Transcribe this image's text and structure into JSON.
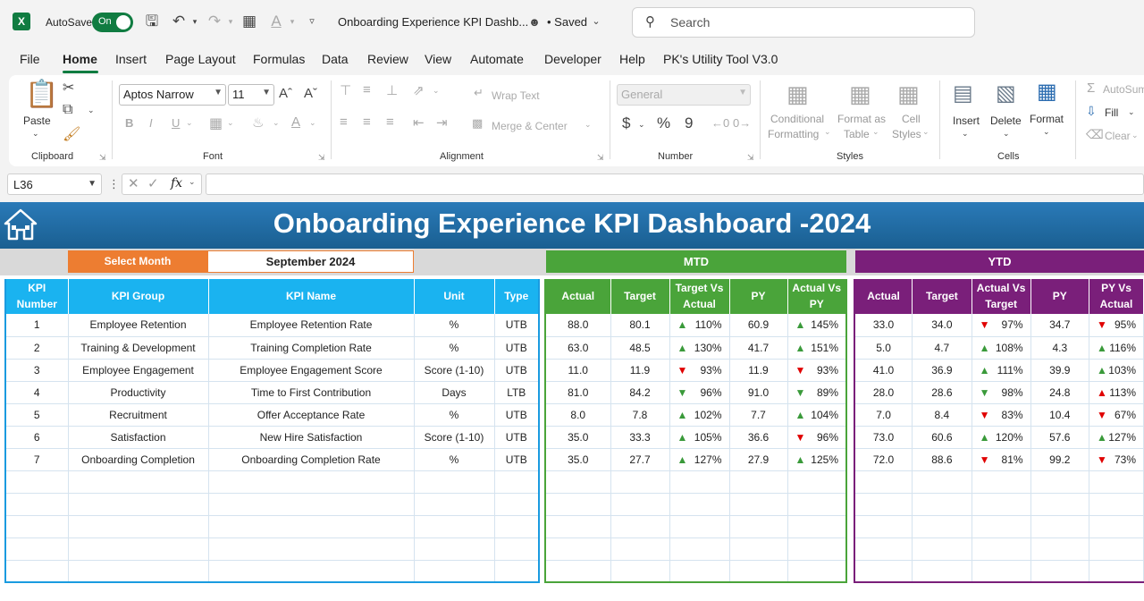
{
  "titlebar": {
    "logo": "X",
    "autosave_label": "AutoSave",
    "autosave_state": "On",
    "doc_title": "Onboarding Experience KPI Dashb...",
    "saved": "• Saved",
    "search_placeholder": "Search"
  },
  "menu": [
    "File",
    "Home",
    "Insert",
    "Page Layout",
    "Formulas",
    "Data",
    "Review",
    "View",
    "Automate",
    "Developer",
    "Help",
    "PK's Utility Tool V3.0"
  ],
  "ribbon": {
    "clipboard": {
      "paste": "Paste",
      "label": "Clipboard"
    },
    "font": {
      "family": "Aptos Narrow",
      "size": "11",
      "label": "Font",
      "bold": "B",
      "italic": "I",
      "underline": "U"
    },
    "alignment": {
      "wrap": "Wrap Text",
      "merge": "Merge & Center",
      "label": "Alignment"
    },
    "number": {
      "format": "General",
      "currency": "$",
      "percent": "%",
      "comma": "9",
      "label": "Number"
    },
    "styles": {
      "conditional": "Conditional",
      "conditional2": "Formatting",
      "format_as": "Format as",
      "format_as2": "Table",
      "cell": "Cell",
      "cell2": "Styles",
      "label": "Styles"
    },
    "cells": {
      "insert": "Insert",
      "delete": "Delete",
      "format": "Format",
      "label": "Cells"
    },
    "editing": {
      "autosum": "AutoSum",
      "fill": "Fill",
      "clear": "Clear"
    }
  },
  "formula_bar": {
    "name_box": "L36",
    "fx": "fx",
    "value": ""
  },
  "dashboard": {
    "title": "Onboarding Experience KPI Dashboard -2024",
    "select_month_label": "Select Month",
    "select_month_value": "September 2024",
    "mtd_label": "MTD",
    "ytd_label": "YTD",
    "colors": {
      "banner": "#1f6fa8",
      "select": "#ed7d31",
      "left_header": "#1ab3f0",
      "mtd": "#4aa43a",
      "ytd": "#7a1f7a",
      "up": "#3a9a3a",
      "down": "#e00000"
    },
    "left_headers": [
      "KPI Number",
      "KPI Group",
      "KPI Name",
      "Unit",
      "Type"
    ],
    "mtd_headers": [
      "Actual",
      "Target",
      "Target Vs Actual",
      "PY",
      "Actual Vs PY"
    ],
    "ytd_headers": [
      "Actual",
      "Target",
      "Actual Vs Target",
      "PY",
      "PY Vs Actual"
    ],
    "rows": [
      {
        "num": "1",
        "group": "Employee Retention",
        "name": "Employee Retention Rate",
        "unit": "%",
        "type": "UTB",
        "mtd": {
          "actual": "88.0",
          "target": "80.1",
          "tva": "110%",
          "tva_dir": "up",
          "py": "60.9",
          "avp": "145%",
          "avp_dir": "up"
        },
        "ytd": {
          "actual": "33.0",
          "target": "34.0",
          "avt": "97%",
          "avt_dir": "down",
          "py": "34.7",
          "pva": "95%",
          "pva_dir": "down"
        }
      },
      {
        "num": "2",
        "group": "Training & Development",
        "name": "Training Completion Rate",
        "unit": "%",
        "type": "UTB",
        "mtd": {
          "actual": "63.0",
          "target": "48.5",
          "tva": "130%",
          "tva_dir": "up",
          "py": "41.7",
          "avp": "151%",
          "avp_dir": "up"
        },
        "ytd": {
          "actual": "5.0",
          "target": "4.7",
          "avt": "108%",
          "avt_dir": "up",
          "py": "4.3",
          "pva": "116%",
          "pva_dir": "up"
        }
      },
      {
        "num": "3",
        "group": "Employee Engagement",
        "name": "Employee Engagement Score",
        "unit": "Score (1-10)",
        "type": "UTB",
        "mtd": {
          "actual": "11.0",
          "target": "11.9",
          "tva": "93%",
          "tva_dir": "down",
          "py": "11.9",
          "avp": "93%",
          "avp_dir": "down"
        },
        "ytd": {
          "actual": "41.0",
          "target": "36.9",
          "avt": "111%",
          "avt_dir": "up",
          "py": "39.9",
          "pva": "103%",
          "pva_dir": "up"
        }
      },
      {
        "num": "4",
        "group": "Productivity",
        "name": "Time to First Contribution",
        "unit": "Days",
        "type": "LTB",
        "mtd": {
          "actual": "81.0",
          "target": "84.2",
          "tva": "96%",
          "tva_dir": "down-green",
          "py": "91.0",
          "avp": "89%",
          "avp_dir": "down-green"
        },
        "ytd": {
          "actual": "28.0",
          "target": "28.6",
          "avt": "98%",
          "avt_dir": "down-green",
          "py": "24.8",
          "pva": "113%",
          "pva_dir": "up-red"
        }
      },
      {
        "num": "5",
        "group": "Recruitment",
        "name": "Offer Acceptance Rate",
        "unit": "%",
        "type": "UTB",
        "mtd": {
          "actual": "8.0",
          "target": "7.8",
          "tva": "102%",
          "tva_dir": "up",
          "py": "7.7",
          "avp": "104%",
          "avp_dir": "up"
        },
        "ytd": {
          "actual": "7.0",
          "target": "8.4",
          "avt": "83%",
          "avt_dir": "down",
          "py": "10.4",
          "pva": "67%",
          "pva_dir": "down"
        }
      },
      {
        "num": "6",
        "group": "Satisfaction",
        "name": "New Hire Satisfaction",
        "unit": "Score (1-10)",
        "type": "UTB",
        "mtd": {
          "actual": "35.0",
          "target": "33.3",
          "tva": "105%",
          "tva_dir": "up",
          "py": "36.6",
          "avp": "96%",
          "avp_dir": "down"
        },
        "ytd": {
          "actual": "73.0",
          "target": "60.6",
          "avt": "120%",
          "avt_dir": "up",
          "py": "57.6",
          "pva": "127%",
          "pva_dir": "up"
        }
      },
      {
        "num": "7",
        "group": "Onboarding Completion",
        "name": "Onboarding Completion Rate",
        "unit": "%",
        "type": "UTB",
        "mtd": {
          "actual": "35.0",
          "target": "27.7",
          "tva": "127%",
          "tva_dir": "up",
          "py": "27.9",
          "avp": "125%",
          "avp_dir": "up"
        },
        "ytd": {
          "actual": "72.0",
          "target": "88.6",
          "avt": "81%",
          "avt_dir": "down",
          "py": "99.2",
          "pva": "73%",
          "pva_dir": "down"
        }
      }
    ],
    "empty_rows": 5
  }
}
